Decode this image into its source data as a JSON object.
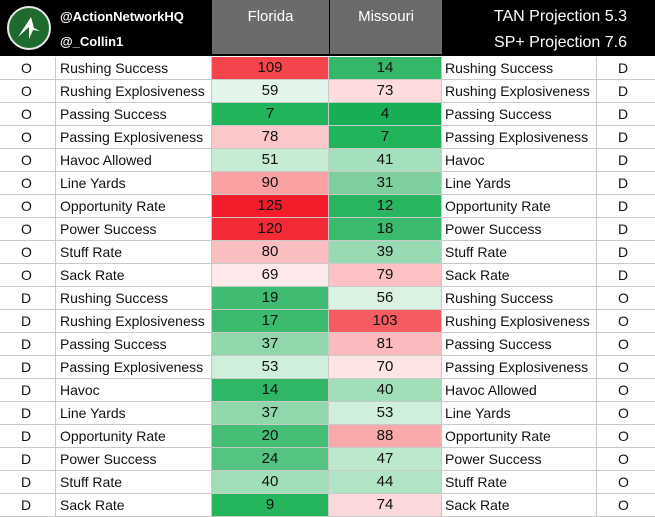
{
  "header": {
    "handle_primary": "@ActionNetworkHQ",
    "handle_secondary": "@_Collin1",
    "team_left": "Florida",
    "team_right": "Missouri",
    "tan_projection": "TAN Projection  5.3",
    "sp_projection": "SP+ Projection  7.6",
    "logo_icon": "action-network-logo-icon"
  },
  "colors": {
    "header_bg": "#000000",
    "team_header_bg": "#6b6b6b",
    "logo_bg": "#1f6b2f"
  },
  "rows": [
    {
      "side_left": "O",
      "metric_left": "Rushing Success",
      "florida": "109",
      "missouri": "14",
      "metric_right": "Rushing Success",
      "side_right": "D",
      "florida_color": "#f4454d",
      "missouri_color": "#34b868"
    },
    {
      "side_left": "O",
      "metric_left": "Rushing Explosiveness",
      "florida": "59",
      "missouri": "73",
      "metric_right": "Rushing Explosiveness",
      "side_right": "D",
      "florida_color": "#e3f5ea",
      "missouri_color": "#fcdcdd"
    },
    {
      "side_left": "O",
      "metric_left": "Passing Success",
      "florida": "7",
      "missouri": "4",
      "metric_right": "Passing Success",
      "side_right": "D",
      "florida_color": "#22b45a",
      "missouri_color": "#17ae55"
    },
    {
      "side_left": "O",
      "metric_left": "Passing Explosiveness",
      "florida": "78",
      "missouri": "7",
      "metric_right": "Passing Explosiveness",
      "side_right": "D",
      "florida_color": "#fcc7c9",
      "missouri_color": "#22b45a"
    },
    {
      "side_left": "O",
      "metric_left": "Havoc Allowed",
      "florida": "51",
      "missouri": "41",
      "metric_right": "Havoc",
      "side_right": "D",
      "florida_color": "#c6ecd4",
      "missouri_color": "#a5e0bc"
    },
    {
      "side_left": "O",
      "metric_left": "Line Yards",
      "florida": "90",
      "missouri": "31",
      "metric_right": "Line Yards",
      "side_right": "D",
      "florida_color": "#f9a0a3",
      "missouri_color": "#7dd09e"
    },
    {
      "side_left": "O",
      "metric_left": "Opportunity Rate",
      "florida": "125",
      "missouri": "12",
      "metric_right": "Opportunity Rate",
      "side_right": "D",
      "florida_color": "#f31c2a",
      "missouri_color": "#2ab661"
    },
    {
      "side_left": "O",
      "metric_left": "Power Success",
      "florida": "120",
      "missouri": "18",
      "metric_right": "Power Success",
      "side_right": "D",
      "florida_color": "#f32b37",
      "missouri_color": "#3aba6d"
    },
    {
      "side_left": "O",
      "metric_left": "Stuff Rate",
      "florida": "80",
      "missouri": "39",
      "metric_right": "Stuff Rate",
      "side_right": "D",
      "florida_color": "#fbbec0",
      "missouri_color": "#98dbb2"
    },
    {
      "side_left": "O",
      "metric_left": "Sack Rate",
      "florida": "69",
      "missouri": "79",
      "metric_right": "Sack Rate",
      "side_right": "D",
      "florida_color": "#fde9ea",
      "missouri_color": "#fbc1c3"
    },
    {
      "side_left": "D",
      "metric_left": "Rushing Success",
      "florida": "19",
      "missouri": "56",
      "metric_right": "Rushing Success",
      "side_right": "O",
      "florida_color": "#3fbc71",
      "missouri_color": "#dbf2e3"
    },
    {
      "side_left": "D",
      "metric_left": "Rushing Explosiveness",
      "florida": "17",
      "missouri": "103",
      "metric_right": "Rushing Explosiveness",
      "side_right": "O",
      "florida_color": "#3cbb6f",
      "missouri_color": "#f45c62"
    },
    {
      "side_left": "D",
      "metric_left": "Passing Success",
      "florida": "37",
      "missouri": "81",
      "metric_right": "Passing Success",
      "side_right": "O",
      "florida_color": "#90d8ab",
      "missouri_color": "#fbbabd"
    },
    {
      "side_left": "D",
      "metric_left": "Passing Explosiveness",
      "florida": "53",
      "missouri": "70",
      "metric_right": "Passing Explosiveness",
      "side_right": "O",
      "florida_color": "#d0efdb",
      "missouri_color": "#fde5e6"
    },
    {
      "side_left": "D",
      "metric_left": "Havoc",
      "florida": "14",
      "missouri": "40",
      "metric_right": "Havoc Allowed",
      "side_right": "O",
      "florida_color": "#2fb766",
      "missouri_color": "#a1dfb8"
    },
    {
      "side_left": "D",
      "metric_left": "Line Yards",
      "florida": "37",
      "missouri": "53",
      "metric_right": "Line Yards",
      "side_right": "O",
      "florida_color": "#90d8ab",
      "missouri_color": "#d0efdb"
    },
    {
      "side_left": "D",
      "metric_left": "Opportunity Rate",
      "florida": "20",
      "missouri": "88",
      "metric_right": "Opportunity Rate",
      "side_right": "O",
      "florida_color": "#45be76",
      "missouri_color": "#f9a8ab"
    },
    {
      "side_left": "D",
      "metric_left": "Power Success",
      "florida": "24",
      "missouri": "47",
      "metric_right": "Power Success",
      "side_right": "O",
      "florida_color": "#55c483",
      "missouri_color": "#bce8cc"
    },
    {
      "side_left": "D",
      "metric_left": "Stuff Rate",
      "florida": "40",
      "missouri": "44",
      "metric_right": "Stuff Rate",
      "side_right": "O",
      "florida_color": "#a1dfb8",
      "missouri_color": "#b0e4c4"
    },
    {
      "side_left": "D",
      "metric_left": "Sack Rate",
      "florida": "9",
      "missouri": "74",
      "metric_right": "Sack Rate",
      "side_right": "O",
      "florida_color": "#25b55d",
      "missouri_color": "#fcd8da"
    }
  ]
}
